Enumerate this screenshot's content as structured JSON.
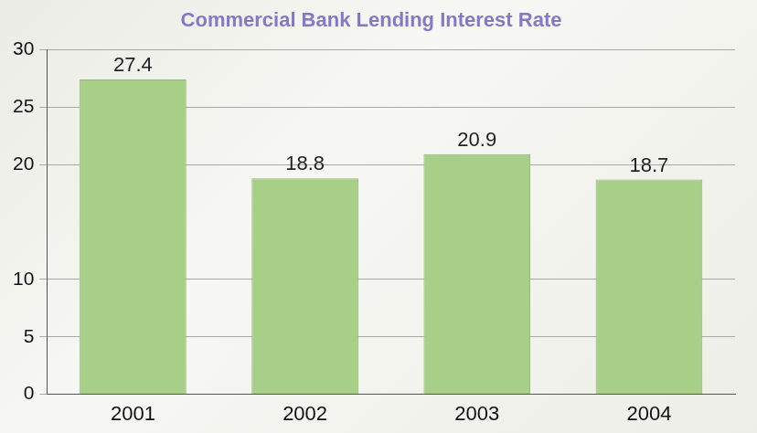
{
  "chart_data": {
    "type": "bar",
    "title": "Commercial Bank Lending Interest Rate",
    "categories": [
      "2001",
      "2002",
      "2003",
      "2004"
    ],
    "values": [
      27.4,
      18.8,
      20.9,
      18.7
    ],
    "color": "#a8cf88",
    "ylim": [
      0,
      30
    ],
    "yticks": [
      0,
      5,
      10,
      20,
      25,
      30
    ],
    "grid": true,
    "data_labels": true
  }
}
